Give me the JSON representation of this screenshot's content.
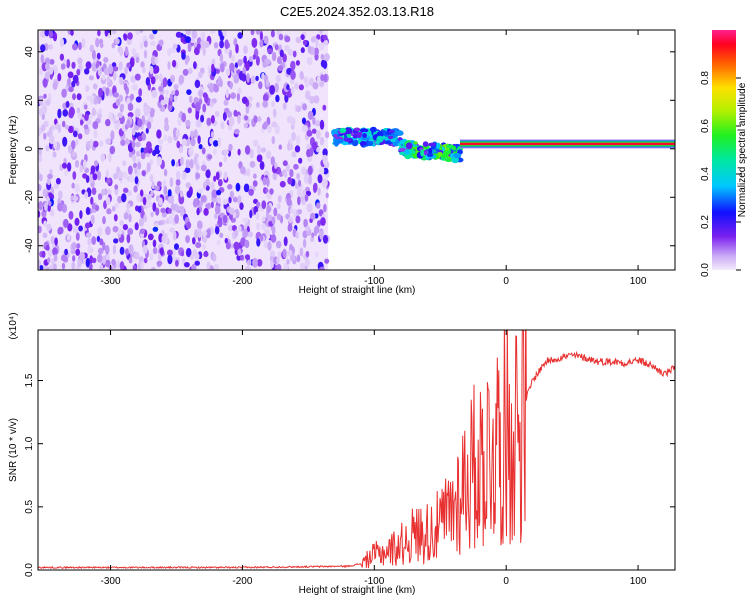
{
  "title": "C2E5.2024.352.03.13.R18",
  "chart_data": [
    {
      "type": "heatmap",
      "xlabel": "Height of straight line (km)",
      "ylabel": "Frequency (Hz)",
      "xlim": [
        -355,
        128
      ],
      "ylim": [
        -50,
        49
      ],
      "xticks": [
        -300,
        -200,
        -100,
        0,
        100
      ],
      "yticks": [
        -40,
        -20,
        0,
        20,
        40
      ],
      "colorbar": {
        "label": "Normalized spectral amplitude",
        "range": [
          0,
          1
        ],
        "ticks": [
          0.0,
          0.2,
          0.4,
          0.6,
          0.8
        ],
        "tick_labels": [
          "0.0",
          "0.2",
          "0.4",
          "0.6",
          "0.8"
        ]
      },
      "regions": [
        {
          "x": [
            -355,
            -135
          ],
          "freq": [
            -50,
            49
          ],
          "amplitude": 0.15,
          "pattern": "noise"
        },
        {
          "x": [
            -130,
            -80
          ],
          "freq_center": 5,
          "amplitude": 0.35,
          "pattern": "patchy"
        },
        {
          "x": [
            -80,
            -35
          ],
          "freq_center": 0,
          "amplitude": 0.5,
          "pattern": "patchy"
        },
        {
          "x": [
            -35,
            128
          ],
          "freq_center": 2,
          "amplitude": 0.95,
          "pattern": "line"
        }
      ]
    },
    {
      "type": "line",
      "xlabel": "Height of straight line (km)",
      "ylabel": "SNR (10 * v/v)",
      "y_multiplier": "(x10⁴)",
      "xlim": [
        -355,
        128
      ],
      "ylim": [
        0,
        1.9
      ],
      "xticks": [
        -300,
        -200,
        -100,
        0,
        100
      ],
      "yticks": [
        0.0,
        0.5,
        1.0,
        1.5
      ],
      "ytick_labels": [
        "0.0",
        "0.5",
        "1.0",
        "1.5"
      ],
      "series": [
        {
          "color": "#e83030",
          "x": [
            -355,
            -300,
            -200,
            -120,
            -110,
            -100,
            -90,
            -80,
            -70,
            -60,
            -50,
            -40,
            -30,
            -20,
            -10,
            0,
            10,
            20,
            30,
            40,
            50,
            60,
            70,
            80,
            90,
            100,
            110,
            120,
            128
          ],
          "values": [
            0.02,
            0.02,
            0.02,
            0.03,
            0.05,
            0.12,
            0.15,
            0.2,
            0.28,
            0.3,
            0.35,
            0.5,
            0.75,
            0.85,
            1.0,
            1.1,
            1.2,
            1.5,
            1.65,
            1.68,
            1.7,
            1.68,
            1.65,
            1.65,
            1.64,
            1.66,
            1.62,
            1.55,
            1.6
          ]
        }
      ]
    }
  ]
}
